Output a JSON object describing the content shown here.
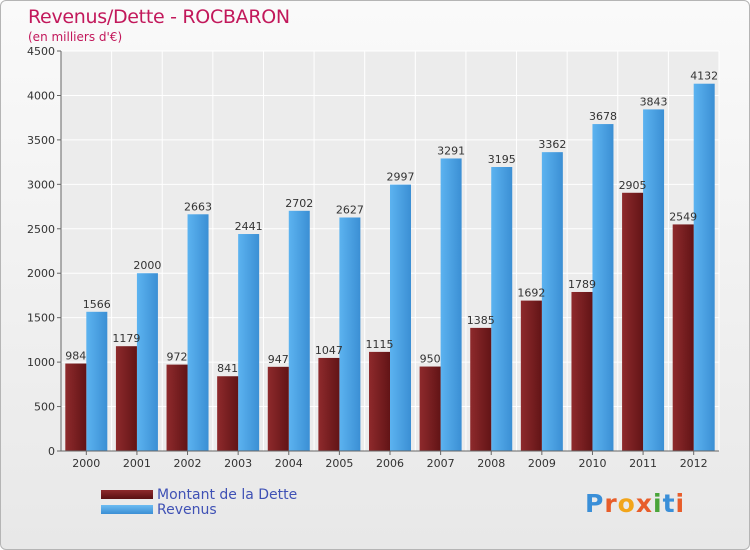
{
  "colors": {
    "debt": "#7a1c1f",
    "revenue": "#4aa3e8",
    "title": "#c2185b",
    "legend_text": "#3f51b5"
  },
  "logo": {
    "text": "Proxiti",
    "letter_colors": [
      "#3a8fd8",
      "#e85d2a",
      "#f2a51a",
      "#e85d2a",
      "#4aa53a",
      "#3a8fd8",
      "#e85d2a"
    ]
  },
  "chart_data": {
    "type": "bar",
    "title": "Revenus/Dette - ROCBARON",
    "subtitle": "(en milliers d'€)",
    "categories": [
      "2000",
      "2001",
      "2002",
      "2003",
      "2004",
      "2005",
      "2006",
      "2007",
      "2008",
      "2009",
      "2010",
      "2011",
      "2012"
    ],
    "series": [
      {
        "name": "Montant de la Dette",
        "values": [
          984,
          1179,
          972,
          841,
          947,
          1047,
          1115,
          950,
          1385,
          1692,
          1789,
          2905,
          2549
        ]
      },
      {
        "name": "Revenus",
        "values": [
          1566,
          2000,
          2663,
          2441,
          2702,
          2627,
          2997,
          3291,
          3195,
          3362,
          3678,
          3843,
          4132
        ]
      }
    ],
    "ylim": [
      0,
      4500
    ],
    "yticks": [
      0,
      500,
      1000,
      1500,
      2000,
      2500,
      3000,
      3500,
      4000,
      4500
    ],
    "grid": true,
    "legend_position": "bottom-left"
  }
}
